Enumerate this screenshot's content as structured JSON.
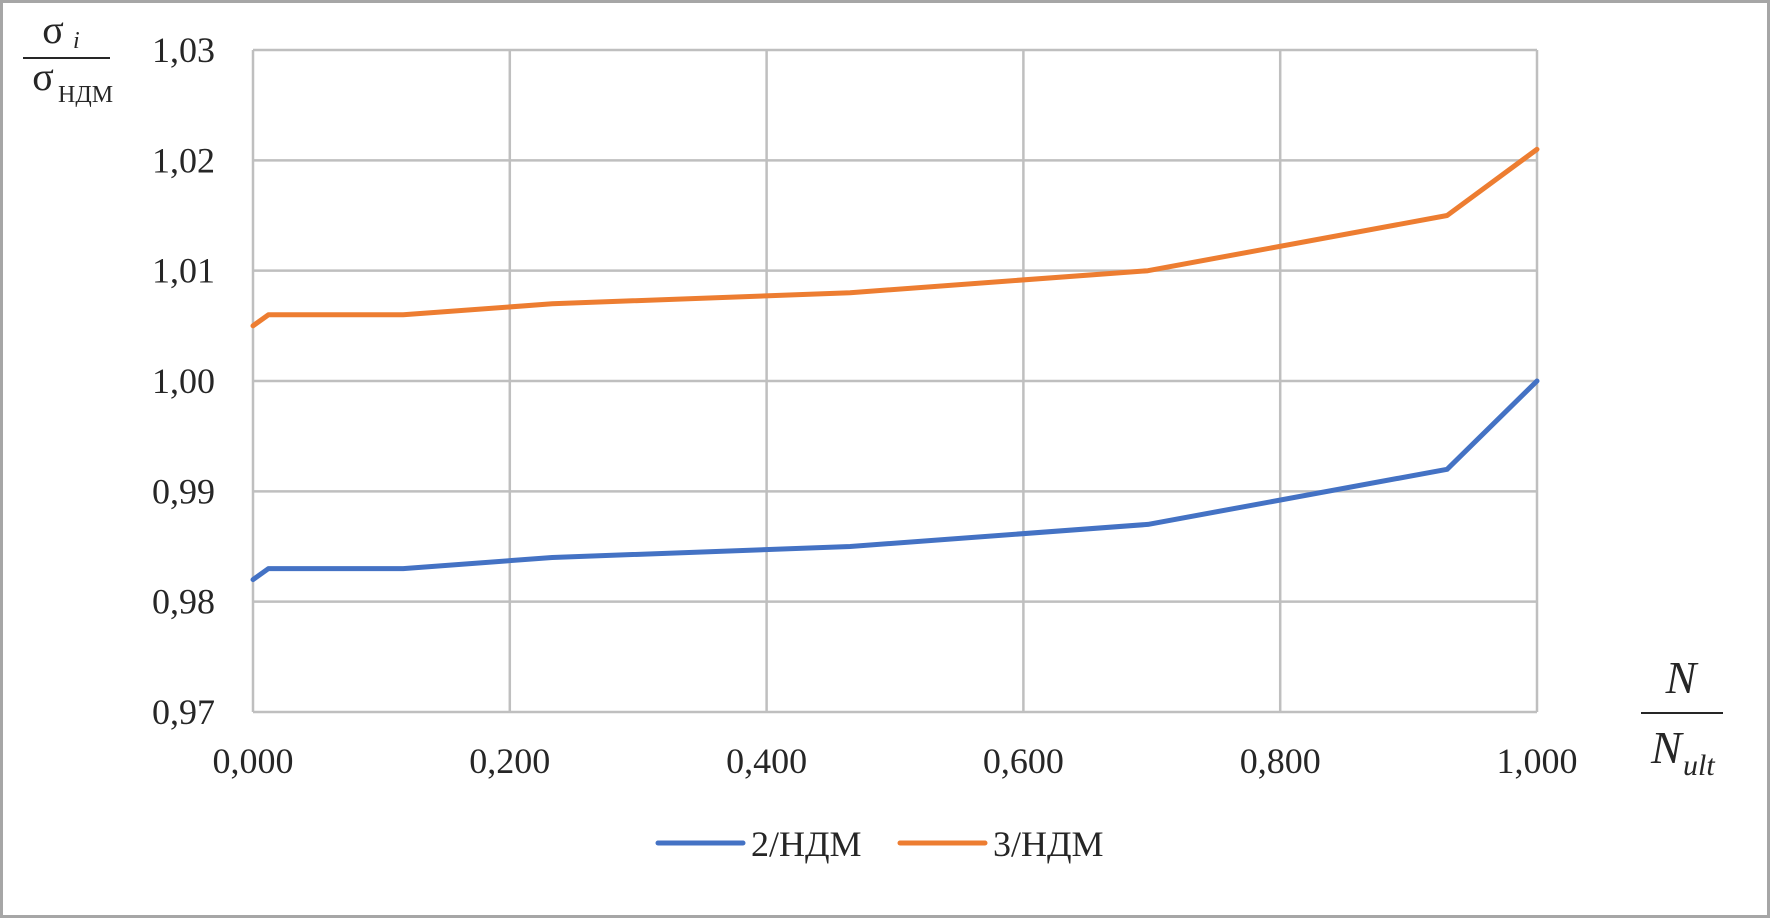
{
  "chart_data": {
    "type": "line",
    "title": "",
    "ylabel": {
      "numerator": "σ",
      "numerator_sub": "i",
      "denominator": "σ",
      "denominator_sub": "НДМ"
    },
    "xlabel": {
      "numerator": "N",
      "denominator": "N",
      "denominator_sub": "ult"
    },
    "xlim": [
      0,
      1
    ],
    "ylim": [
      0.97,
      1.03
    ],
    "x_ticks": [
      0,
      0.2,
      0.4,
      0.6,
      0.8,
      1.0
    ],
    "x_tick_labels": [
      "0,000",
      "0,200",
      "0,400",
      "0,600",
      "0,800",
      "1,000"
    ],
    "y_ticks": [
      0.97,
      0.98,
      0.99,
      1.0,
      1.01,
      1.02,
      1.03
    ],
    "y_tick_labels": [
      "0,97",
      "0,98",
      "0,99",
      "1,00",
      "1,01",
      "1,02",
      "1,03"
    ],
    "grid": true,
    "legend_position": "bottom-center",
    "series": [
      {
        "name": "2/НДМ",
        "color": "#4472c4",
        "x": [
          0,
          0.012,
          0.117,
          0.233,
          0.465,
          0.697,
          0.93,
          1.0
        ],
        "values": [
          0.982,
          0.983,
          0.983,
          0.984,
          0.985,
          0.987,
          0.992,
          1.0
        ]
      },
      {
        "name": "3/НДМ",
        "color": "#ed7d31",
        "x": [
          0,
          0.012,
          0.117,
          0.233,
          0.465,
          0.697,
          0.93,
          1.0
        ],
        "values": [
          1.005,
          1.006,
          1.006,
          1.007,
          1.008,
          1.01,
          1.015,
          1.021
        ]
      }
    ]
  },
  "colors": {
    "grid": "#bfbfbf",
    "frame": "#a6a6a6",
    "text": "#262626"
  }
}
